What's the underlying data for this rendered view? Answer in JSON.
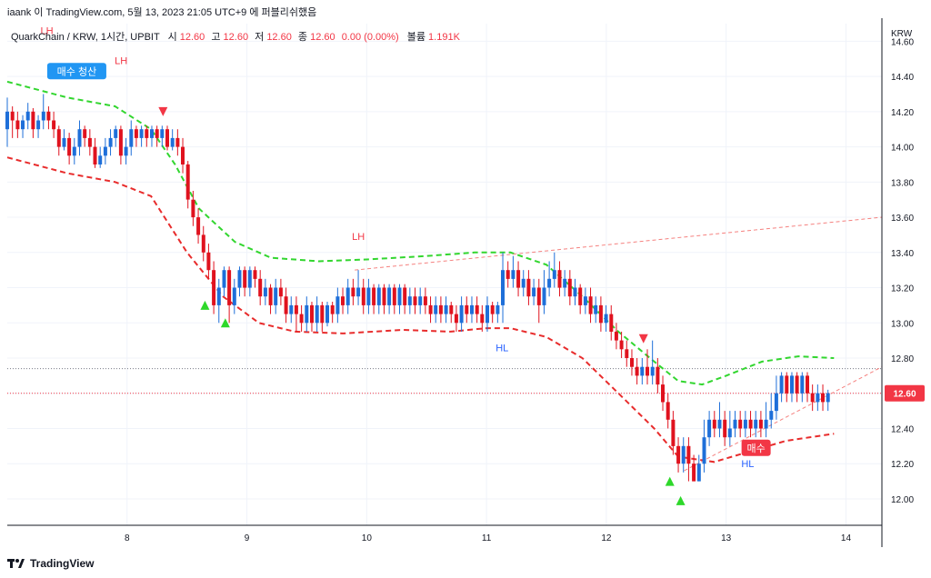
{
  "header": {
    "published_by": "iaank 이 TradingView.com, 5월 13, 2023 21:05 UTC+9 에 퍼블리쉬했음"
  },
  "legend": {
    "symbol": "QuarkChain / KRW, 1시간, UPBIT",
    "open_label": "시",
    "open_value": "12.60",
    "high_label": "고",
    "high_value": "12.60",
    "low_label": "저",
    "low_value": "12.60",
    "close_label": "종",
    "close_value": "12.60",
    "change": "0.00 (0.00%)",
    "volume_label": "볼륨",
    "volume_value": "1.191K"
  },
  "footer": {
    "brand": "TradingView"
  },
  "colors": {
    "up": "#2962ff",
    "up_candle": "#1e6fd9",
    "down": "#f23645",
    "down_candle": "#e0121e",
    "upper_band": "#32d62f",
    "lower_band": "#e82c2c",
    "price_tag": "#f23645",
    "trendline": "#f5817f"
  },
  "chart_data": {
    "type": "candlestick",
    "currency_label": "KRW",
    "last_price": "12.60",
    "y_ticks": [
      "14.60",
      "14.40",
      "14.20",
      "14.00",
      "13.80",
      "13.60",
      "13.40",
      "13.20",
      "13.00",
      "12.80",
      "12.60",
      "12.40",
      "12.20",
      "12.00"
    ],
    "y_range": [
      11.85,
      14.7
    ],
    "x_ticks": [
      "8",
      "9",
      "10",
      "11",
      "12",
      "13",
      "14"
    ],
    "x_range": [
      7,
      14.3
    ],
    "annotations": [
      {
        "text": "LH",
        "x": 7.33,
        "y": 14.64,
        "color": "#f23645"
      },
      {
        "text": "LH",
        "x": 7.95,
        "y": 14.47,
        "color": "#f23645"
      },
      {
        "text": "LH",
        "x": 9.93,
        "y": 13.47,
        "color": "#f23645"
      },
      {
        "text": "HL",
        "x": 11.13,
        "y": 12.84,
        "color": "#2962ff"
      },
      {
        "text": "HL",
        "x": 13.18,
        "y": 12.18,
        "color": "#2962ff"
      }
    ],
    "signals": [
      {
        "text": "매수 청산",
        "x": 7.58,
        "y": 14.43,
        "bg": "#2196f3"
      },
      {
        "text": "매수",
        "x": 13.25,
        "y": 12.29,
        "bg": "#f23645"
      }
    ],
    "triangles": [
      {
        "dir": "down",
        "x": 8.3,
        "y": 14.2,
        "color": "#f23645"
      },
      {
        "dir": "up",
        "x": 8.65,
        "y": 13.1,
        "color": "#2ed82a"
      },
      {
        "dir": "up",
        "x": 8.82,
        "y": 13.0,
        "color": "#2ed82a"
      },
      {
        "dir": "down",
        "x": 12.31,
        "y": 12.91,
        "color": "#f23645"
      },
      {
        "dir": "up",
        "x": 12.53,
        "y": 12.1,
        "color": "#2ed82a"
      },
      {
        "dir": "up",
        "x": 12.62,
        "y": 11.99,
        "color": "#2ed82a"
      }
    ],
    "upper_band": [
      [
        7,
        14.37
      ],
      [
        7.5,
        14.28
      ],
      [
        7.9,
        14.23
      ],
      [
        8.2,
        14.1
      ],
      [
        8.4,
        13.9
      ],
      [
        8.6,
        13.65
      ],
      [
        8.9,
        13.46
      ],
      [
        9.2,
        13.37
      ],
      [
        9.6,
        13.35
      ],
      [
        10,
        13.36
      ],
      [
        10.5,
        13.38
      ],
      [
        10.9,
        13.4
      ],
      [
        11.2,
        13.4
      ],
      [
        11.5,
        13.33
      ],
      [
        11.8,
        13.15
      ],
      [
        12.1,
        12.95
      ],
      [
        12.4,
        12.78
      ],
      [
        12.6,
        12.67
      ],
      [
        12.8,
        12.65
      ],
      [
        13.0,
        12.7
      ],
      [
        13.3,
        12.78
      ],
      [
        13.6,
        12.81
      ],
      [
        13.9,
        12.8
      ]
    ],
    "lower_band": [
      [
        7,
        13.94
      ],
      [
        7.5,
        13.85
      ],
      [
        7.9,
        13.8
      ],
      [
        8.2,
        13.72
      ],
      [
        8.5,
        13.4
      ],
      [
        8.8,
        13.15
      ],
      [
        9.1,
        13.0
      ],
      [
        9.4,
        12.95
      ],
      [
        9.8,
        12.94
      ],
      [
        10.3,
        12.96
      ],
      [
        10.7,
        12.95
      ],
      [
        11.0,
        12.97
      ],
      [
        11.2,
        12.97
      ],
      [
        11.5,
        12.92
      ],
      [
        11.8,
        12.8
      ],
      [
        12.1,
        12.6
      ],
      [
        12.4,
        12.4
      ],
      [
        12.6,
        12.24
      ],
      [
        12.9,
        12.21
      ],
      [
        13.2,
        12.27
      ],
      [
        13.5,
        12.33
      ],
      [
        13.9,
        12.37
      ]
    ],
    "trendlines": [
      {
        "from": [
          9.9,
          13.3
        ],
        "to": [
          14.3,
          13.6
        ]
      },
      {
        "from": [
          12.65,
          12.16
        ],
        "to": [
          14.3,
          12.75
        ]
      }
    ],
    "candles": [
      [
        14.1,
        14.2,
        14.28,
        14.0
      ],
      [
        14.2,
        14.15,
        14.23,
        14.05
      ],
      [
        14.15,
        14.1,
        14.2,
        14.05
      ],
      [
        14.1,
        14.15,
        14.18,
        14.05
      ],
      [
        14.15,
        14.2,
        14.25,
        14.1
      ],
      [
        14.2,
        14.1,
        14.22,
        14.05
      ],
      [
        14.1,
        14.15,
        14.18,
        14.05
      ],
      [
        14.15,
        14.2,
        14.3,
        14.1
      ],
      [
        14.2,
        14.15,
        14.23,
        14.1
      ],
      [
        14.15,
        14.1,
        14.2,
        14.05
      ],
      [
        14.1,
        14.0,
        14.12,
        13.95
      ],
      [
        14.0,
        14.05,
        14.1,
        13.98
      ],
      [
        14.05,
        13.95,
        14.08,
        13.9
      ],
      [
        13.95,
        14.0,
        14.05,
        13.9
      ],
      [
        14.0,
        14.1,
        14.15,
        13.95
      ],
      [
        14.1,
        14.05,
        14.12,
        14.0
      ],
      [
        14.05,
        14.0,
        14.1,
        13.95
      ],
      [
        14.0,
        13.9,
        14.05,
        13.88
      ],
      [
        13.9,
        13.95,
        14.0,
        13.88
      ],
      [
        13.95,
        14.0,
        14.05,
        13.9
      ],
      [
        14.0,
        14.05,
        14.1,
        13.95
      ],
      [
        14.05,
        14.1,
        14.12,
        14.0
      ],
      [
        14.1,
        13.95,
        14.12,
        13.9
      ],
      [
        13.95,
        14.0,
        14.05,
        13.9
      ],
      [
        14.0,
        14.1,
        14.15,
        13.95
      ],
      [
        14.1,
        14.05,
        14.12,
        14.0
      ],
      [
        14.05,
        14.1,
        14.12,
        14.0
      ],
      [
        14.1,
        14.05,
        14.12,
        14.0
      ],
      [
        14.05,
        14.1,
        14.12,
        14.0
      ],
      [
        14.1,
        14.05,
        14.12,
        14.0
      ],
      [
        14.05,
        14.1,
        14.12,
        14.0
      ],
      [
        14.1,
        14.0,
        14.12,
        13.98
      ],
      [
        14.0,
        14.05,
        14.1,
        13.98
      ],
      [
        14.05,
        14.0,
        14.1,
        13.95
      ],
      [
        14.0,
        13.9,
        14.05,
        13.85
      ],
      [
        13.9,
        13.7,
        13.92,
        13.65
      ],
      [
        13.7,
        13.6,
        13.75,
        13.55
      ],
      [
        13.6,
        13.5,
        13.65,
        13.45
      ],
      [
        13.5,
        13.4,
        13.55,
        13.35
      ],
      [
        13.4,
        13.3,
        13.45,
        13.25
      ],
      [
        13.3,
        13.1,
        13.35,
        13.05
      ],
      [
        13.1,
        13.2,
        13.25,
        13.0
      ],
      [
        13.2,
        13.3,
        13.32,
        13.15
      ],
      [
        13.3,
        13.1,
        13.32,
        13.0
      ],
      [
        13.1,
        13.2,
        13.25,
        13.05
      ],
      [
        13.2,
        13.3,
        13.32,
        13.15
      ],
      [
        13.3,
        13.2,
        13.32,
        13.15
      ],
      [
        13.2,
        13.3,
        13.32,
        13.15
      ],
      [
        13.3,
        13.25,
        13.32,
        13.2
      ],
      [
        13.25,
        13.15,
        13.3,
        13.1
      ],
      [
        13.15,
        13.2,
        13.25,
        13.1
      ],
      [
        13.2,
        13.1,
        13.22,
        13.05
      ],
      [
        13.1,
        13.2,
        13.25,
        13.05
      ],
      [
        13.2,
        13.15,
        13.25,
        13.1
      ],
      [
        13.15,
        13.05,
        13.2,
        13.0
      ],
      [
        13.05,
        13.1,
        13.15,
        13.0
      ],
      [
        13.1,
        13.05,
        13.15,
        12.95
      ],
      [
        13.05,
        13.0,
        13.1,
        12.95
      ],
      [
        13.0,
        13.1,
        13.15,
        12.95
      ],
      [
        13.1,
        13.0,
        13.12,
        12.95
      ],
      [
        13.0,
        13.1,
        13.15,
        12.95
      ],
      [
        13.1,
        13.0,
        13.12,
        12.95
      ],
      [
        13.0,
        13.1,
        13.12,
        12.98
      ],
      [
        13.1,
        13.05,
        13.12,
        13.0
      ],
      [
        13.05,
        13.15,
        13.2,
        13.0
      ],
      [
        13.15,
        13.1,
        13.2,
        13.05
      ],
      [
        13.1,
        13.2,
        13.25,
        13.05
      ],
      [
        13.2,
        13.15,
        13.25,
        13.1
      ],
      [
        13.15,
        13.2,
        13.3,
        13.1
      ],
      [
        13.2,
        13.1,
        13.25,
        13.05
      ],
      [
        13.1,
        13.2,
        13.25,
        13.05
      ],
      [
        13.2,
        13.1,
        13.22,
        13.05
      ],
      [
        13.1,
        13.2,
        13.22,
        13.05
      ],
      [
        13.2,
        13.1,
        13.22,
        13.05
      ],
      [
        13.1,
        13.2,
        13.22,
        13.05
      ],
      [
        13.2,
        13.1,
        13.22,
        13.05
      ],
      [
        13.1,
        13.2,
        13.22,
        13.05
      ],
      [
        13.2,
        13.1,
        13.22,
        13.05
      ],
      [
        13.1,
        13.15,
        13.2,
        13.05
      ],
      [
        13.15,
        13.1,
        13.2,
        13.05
      ],
      [
        13.1,
        13.15,
        13.2,
        13.05
      ],
      [
        13.15,
        13.1,
        13.2,
        13.05
      ],
      [
        13.1,
        13.05,
        13.15,
        13.0
      ],
      [
        13.05,
        13.1,
        13.15,
        13.0
      ],
      [
        13.1,
        13.05,
        13.15,
        13.0
      ],
      [
        13.05,
        13.1,
        13.15,
        13.0
      ],
      [
        13.1,
        13.05,
        13.12,
        13.0
      ],
      [
        13.05,
        13.0,
        13.1,
        12.95
      ],
      [
        13.0,
        13.1,
        13.15,
        12.95
      ],
      [
        13.1,
        13.05,
        13.15,
        13.0
      ],
      [
        13.05,
        13.1,
        13.15,
        13.0
      ],
      [
        13.1,
        13.05,
        13.15,
        13.0
      ],
      [
        13.05,
        13.0,
        13.1,
        12.95
      ],
      [
        13.0,
        13.1,
        13.15,
        12.95
      ],
      [
        13.1,
        13.05,
        13.12,
        13.0
      ],
      [
        13.05,
        13.1,
        13.12,
        13.0
      ],
      [
        13.1,
        13.3,
        13.4,
        13.0
      ],
      [
        13.3,
        13.25,
        13.35,
        13.2
      ],
      [
        13.25,
        13.3,
        13.38,
        13.2
      ],
      [
        13.3,
        13.2,
        13.35,
        13.15
      ],
      [
        13.2,
        13.25,
        13.3,
        13.15
      ],
      [
        13.25,
        13.15,
        13.3,
        13.1
      ],
      [
        13.15,
        13.2,
        13.25,
        13.1
      ],
      [
        13.2,
        13.1,
        13.25,
        13.0
      ],
      [
        13.1,
        13.2,
        13.3,
        13.05
      ],
      [
        13.2,
        13.25,
        13.35,
        13.15
      ],
      [
        13.25,
        13.3,
        13.4,
        13.2
      ],
      [
        13.3,
        13.2,
        13.35,
        13.15
      ],
      [
        13.2,
        13.25,
        13.3,
        13.15
      ],
      [
        13.25,
        13.15,
        13.3,
        13.1
      ],
      [
        13.15,
        13.2,
        13.25,
        13.1
      ],
      [
        13.2,
        13.1,
        13.22,
        13.05
      ],
      [
        13.1,
        13.15,
        13.2,
        13.05
      ],
      [
        13.15,
        13.05,
        13.2,
        13.0
      ],
      [
        13.05,
        13.1,
        13.15,
        13.0
      ],
      [
        13.1,
        13.0,
        13.15,
        12.95
      ],
      [
        13.0,
        13.05,
        13.1,
        12.95
      ],
      [
        13.05,
        12.95,
        13.1,
        12.9
      ],
      [
        12.95,
        12.9,
        13.0,
        12.85
      ],
      [
        12.9,
        12.85,
        12.95,
        12.8
      ],
      [
        12.85,
        12.8,
        12.9,
        12.75
      ],
      [
        12.8,
        12.75,
        12.85,
        12.7
      ],
      [
        12.75,
        12.7,
        12.8,
        12.65
      ],
      [
        12.7,
        12.75,
        12.8,
        12.65
      ],
      [
        12.75,
        12.7,
        12.85,
        12.65
      ],
      [
        12.7,
        12.75,
        12.9,
        12.65
      ],
      [
        12.75,
        12.65,
        12.8,
        12.6
      ],
      [
        12.65,
        12.55,
        12.7,
        12.5
      ],
      [
        12.55,
        12.45,
        12.6,
        12.4
      ],
      [
        12.45,
        12.3,
        12.5,
        12.25
      ],
      [
        12.3,
        12.2,
        12.35,
        12.15
      ],
      [
        12.2,
        12.3,
        12.35,
        12.15
      ],
      [
        12.3,
        12.2,
        12.35,
        12.1
      ],
      [
        12.2,
        12.1,
        12.25,
        12.1
      ],
      [
        12.1,
        12.2,
        12.25,
        12.1
      ],
      [
        12.2,
        12.35,
        12.45,
        12.15
      ],
      [
        12.35,
        12.45,
        12.5,
        12.3
      ],
      [
        12.45,
        12.4,
        12.5,
        12.35
      ],
      [
        12.4,
        12.45,
        12.55,
        12.35
      ],
      [
        12.45,
        12.35,
        12.5,
        12.3
      ],
      [
        12.35,
        12.4,
        12.5,
        12.3
      ],
      [
        12.4,
        12.45,
        12.5,
        12.35
      ],
      [
        12.45,
        12.4,
        12.5,
        12.35
      ],
      [
        12.4,
        12.45,
        12.5,
        12.35
      ],
      [
        12.45,
        12.4,
        12.5,
        12.35
      ],
      [
        12.4,
        12.45,
        12.5,
        12.35
      ],
      [
        12.45,
        12.4,
        12.5,
        12.35
      ],
      [
        12.4,
        12.45,
        12.55,
        12.35
      ],
      [
        12.45,
        12.5,
        12.6,
        12.4
      ],
      [
        12.5,
        12.6,
        12.7,
        12.45
      ],
      [
        12.6,
        12.7,
        12.72,
        12.55
      ],
      [
        12.7,
        12.6,
        12.72,
        12.55
      ],
      [
        12.6,
        12.7,
        12.72,
        12.55
      ],
      [
        12.7,
        12.6,
        12.72,
        12.55
      ],
      [
        12.6,
        12.7,
        12.72,
        12.55
      ],
      [
        12.7,
        12.6,
        12.72,
        12.55
      ],
      [
        12.6,
        12.55,
        12.65,
        12.5
      ],
      [
        12.55,
        12.6,
        12.65,
        12.5
      ],
      [
        12.6,
        12.55,
        12.65,
        12.5
      ],
      [
        12.55,
        12.6,
        12.62,
        12.5
      ]
    ]
  }
}
